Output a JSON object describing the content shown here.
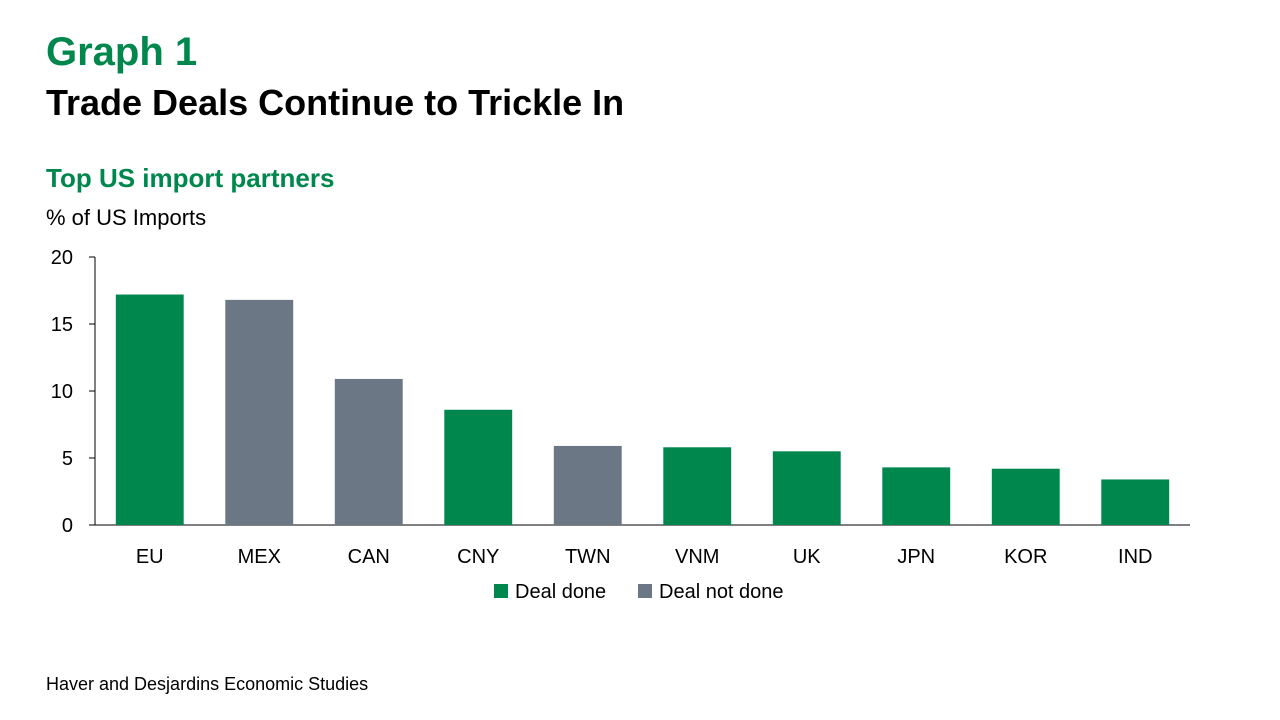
{
  "header": {
    "graph_label": "Graph 1",
    "title": "Trade Deals Continue to Trickle In"
  },
  "chart_data": {
    "type": "bar",
    "title": "Top US import partners",
    "ylabel": "% of US Imports",
    "xlabel": "",
    "ylim": [
      0,
      20
    ],
    "yticks": [
      0,
      5,
      10,
      15,
      20
    ],
    "categories": [
      "EU",
      "MEX",
      "CAN",
      "CNY",
      "TWN",
      "VNM",
      "UK",
      "JPN",
      "KOR",
      "IND"
    ],
    "values": [
      17.2,
      16.8,
      10.9,
      8.6,
      5.9,
      5.8,
      5.5,
      4.3,
      4.2,
      3.4
    ],
    "status": [
      "done",
      "not_done",
      "not_done",
      "done",
      "not_done",
      "done",
      "done",
      "done",
      "done",
      "done"
    ],
    "legend": [
      {
        "key": "done",
        "label": "Deal done",
        "color": "#00874e"
      },
      {
        "key": "not_done",
        "label": "Deal not done",
        "color": "#6b7784"
      }
    ],
    "legend_position": "bottom",
    "grid": false
  },
  "footer": {
    "source": "Haver and Desjardins Economic Studies"
  }
}
